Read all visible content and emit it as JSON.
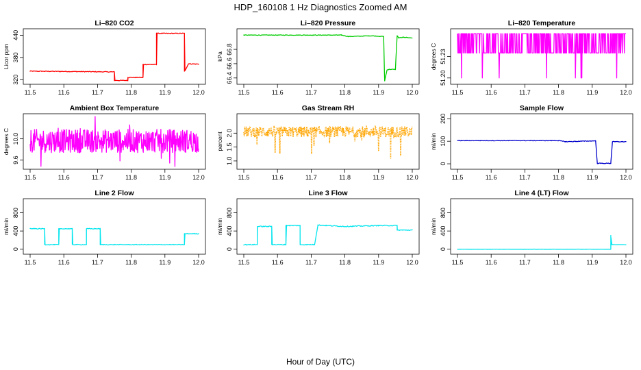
{
  "figure": {
    "title": "HDP_160108  1 Hz Diagnostics Zoomed AM",
    "xlabel": "Hour of Day (UTC)"
  },
  "chart_data": [
    {
      "id": "co2",
      "type": "line",
      "title": "Li–820 CO2",
      "ylabel": "Licor ppm",
      "color": "#ff0000",
      "xlim": [
        11.5,
        12.0
      ],
      "ylim": [
        315,
        450
      ],
      "xticks": [
        11.5,
        11.6,
        11.7,
        11.8,
        11.9,
        12.0
      ],
      "xticklabels": [
        "11.5",
        "11.6",
        "11.7",
        "11.8",
        "11.9",
        "12.0"
      ],
      "yticks": [
        320,
        380,
        440
      ],
      "yticklabels": [
        "320",
        "380",
        "440"
      ],
      "noise": 1,
      "step": true,
      "x": [
        11.5,
        11.75,
        11.75,
        11.79,
        11.79,
        11.835,
        11.835,
        11.875,
        11.875,
        11.958,
        11.958,
        11.97,
        12.0
      ],
      "y": [
        343,
        341,
        318,
        318,
        326,
        326,
        361,
        361,
        445,
        445,
        342,
        363,
        362
      ]
    },
    {
      "id": "pressure",
      "type": "line",
      "title": "Li–820 Pressure",
      "ylabel": "kPa",
      "color": "#00cc00",
      "xlim": [
        11.5,
        12.0
      ],
      "ylim": [
        66.35,
        67.05
      ],
      "xticks": [
        11.5,
        11.6,
        11.7,
        11.8,
        11.9,
        12.0
      ],
      "xticklabels": [
        "11.5",
        "11.6",
        "11.7",
        "11.8",
        "11.9",
        "12.0"
      ],
      "yticks": [
        66.4,
        66.6,
        66.8
      ],
      "yticklabels": [
        "66.4",
        "66.6",
        "66.8"
      ],
      "noise": 0.004,
      "step": true,
      "x": [
        11.5,
        11.79,
        11.81,
        11.88,
        11.915,
        11.918,
        11.925,
        11.93,
        11.95,
        11.955,
        11.96,
        11.975,
        12.0
      ],
      "y": [
        67.0,
        67.0,
        66.98,
        66.99,
        66.98,
        66.36,
        66.51,
        66.52,
        66.52,
        66.99,
        66.96,
        66.97,
        66.96
      ]
    },
    {
      "id": "temperature",
      "type": "line",
      "title": "Li–820 Temperature",
      "ylabel": "degrees C",
      "color": "#ff00ff",
      "xlim": [
        11.5,
        12.0
      ],
      "ylim": [
        51.195,
        51.265
      ],
      "xticks": [
        11.5,
        11.6,
        11.7,
        11.8,
        11.9,
        12.0
      ],
      "xticklabels": [
        "11.5",
        "11.6",
        "11.7",
        "11.8",
        "11.9",
        "12.0"
      ],
      "yticks": [
        51.2,
        51.23
      ],
      "yticklabels": [
        "51.20",
        "51.23"
      ],
      "pattern": "bistable",
      "levels": [
        51.235,
        51.262
      ],
      "x": [],
      "y": []
    },
    {
      "id": "ambient",
      "type": "line",
      "title": "Ambient Box Temperature",
      "ylabel": "degrees C",
      "color": "#ff00ff",
      "xlim": [
        11.5,
        12.0
      ],
      "ylim": [
        9.48,
        10.42
      ],
      "xticks": [
        11.5,
        11.6,
        11.7,
        11.8,
        11.9,
        12.0
      ],
      "xticklabels": [
        "11.5",
        "11.6",
        "11.7",
        "11.8",
        "11.9",
        "12.0"
      ],
      "yticks": [
        9.6,
        10.0
      ],
      "yticklabels": [
        "9.6",
        "10.0"
      ],
      "pattern": "noise",
      "mean": 9.96,
      "amp": 0.22,
      "x": [],
      "y": []
    },
    {
      "id": "rh",
      "type": "scatter",
      "title": "Gas Stream RH",
      "ylabel": "percent",
      "color": "#ffa500",
      "xlim": [
        11.5,
        12.0
      ],
      "ylim": [
        0.8,
        2.6
      ],
      "xticks": [
        11.5,
        11.6,
        11.7,
        11.8,
        11.9,
        12.0
      ],
      "xticklabels": [
        "11.5",
        "11.6",
        "11.7",
        "11.8",
        "11.9",
        "12.0"
      ],
      "yticks": [
        1.0,
        1.5,
        2.0
      ],
      "yticklabels": [
        "1.0",
        "1.5",
        "2.0"
      ],
      "pattern": "band",
      "mean": 2.05,
      "amp": 0.2,
      "x": [],
      "y": []
    },
    {
      "id": "sample",
      "type": "line",
      "title": "Sample Flow",
      "ylabel": "ml/min",
      "color": "#0000cc",
      "xlim": [
        11.5,
        12.0
      ],
      "ylim": [
        -12,
        210
      ],
      "xticks": [
        11.5,
        11.6,
        11.7,
        11.8,
        11.9,
        12.0
      ],
      "xticklabels": [
        "11.5",
        "11.6",
        "11.7",
        "11.8",
        "11.9",
        "12.0"
      ],
      "yticks": [
        0,
        100,
        200
      ],
      "yticklabels": [
        "0",
        "100",
        "200"
      ],
      "noise": 1.5,
      "step": true,
      "x": [
        11.5,
        11.8,
        11.82,
        11.91,
        11.915,
        11.955,
        11.96,
        12.0
      ],
      "y": [
        103,
        103,
        98,
        102,
        2,
        2,
        98,
        98
      ]
    },
    {
      "id": "line2",
      "type": "line",
      "title": "Line 2 Flow",
      "ylabel": "ml/min",
      "color": "#00e5ee",
      "xlim": [
        11.5,
        12.0
      ],
      "ylim": [
        -50,
        1050
      ],
      "xticks": [
        11.5,
        11.6,
        11.7,
        11.8,
        11.9,
        12.0
      ],
      "xticklabels": [
        "11.5",
        "11.6",
        "11.7",
        "11.8",
        "11.9",
        "12.0"
      ],
      "yticks": [
        0,
        400,
        800
      ],
      "yticklabels": [
        "0",
        "400",
        "800"
      ],
      "noise": 8,
      "step": true,
      "x": [
        11.5,
        11.543,
        11.543,
        11.585,
        11.585,
        11.625,
        11.625,
        11.667,
        11.667,
        11.708,
        11.708,
        11.958,
        11.958,
        12.0
      ],
      "y": [
        450,
        450,
        100,
        100,
        450,
        450,
        100,
        100,
        450,
        450,
        100,
        100,
        340,
        340
      ]
    },
    {
      "id": "line3",
      "type": "line",
      "title": "Line 3 Flow",
      "ylabel": "ml/min",
      "color": "#00e5ee",
      "xlim": [
        11.5,
        12.0
      ],
      "ylim": [
        -50,
        1050
      ],
      "xticks": [
        11.5,
        11.6,
        11.7,
        11.8,
        11.9,
        12.0
      ],
      "xticklabels": [
        "11.5",
        "11.6",
        "11.7",
        "11.8",
        "11.9",
        "12.0"
      ],
      "yticks": [
        0,
        400,
        800
      ],
      "yticklabels": [
        "0",
        "400",
        "800"
      ],
      "noise": 10,
      "step": true,
      "x": [
        11.5,
        11.54,
        11.54,
        11.583,
        11.583,
        11.625,
        11.625,
        11.667,
        11.667,
        11.71,
        11.72,
        11.8,
        11.9,
        11.955,
        11.955,
        12.0
      ],
      "y": [
        100,
        100,
        500,
        500,
        100,
        100,
        520,
        520,
        100,
        100,
        530,
        500,
        520,
        520,
        420,
        420
      ]
    },
    {
      "id": "line4",
      "type": "line",
      "title": "Line 4 (LT) Flow",
      "ylabel": "ml/min",
      "color": "#00e5ee",
      "xlim": [
        11.5,
        12.0
      ],
      "ylim": [
        -50,
        1050
      ],
      "xticks": [
        11.5,
        11.6,
        11.7,
        11.8,
        11.9,
        12.0
      ],
      "xticklabels": [
        "11.5",
        "11.6",
        "11.7",
        "11.8",
        "11.9",
        "12.0"
      ],
      "yticks": [
        0,
        400,
        800
      ],
      "yticklabels": [
        "0",
        "400",
        "800"
      ],
      "noise": 2,
      "step": true,
      "x": [
        11.5,
        11.955,
        11.955,
        11.958,
        11.958,
        12.0
      ],
      "y": [
        0,
        0,
        300,
        120,
        100,
        100
      ]
    }
  ]
}
